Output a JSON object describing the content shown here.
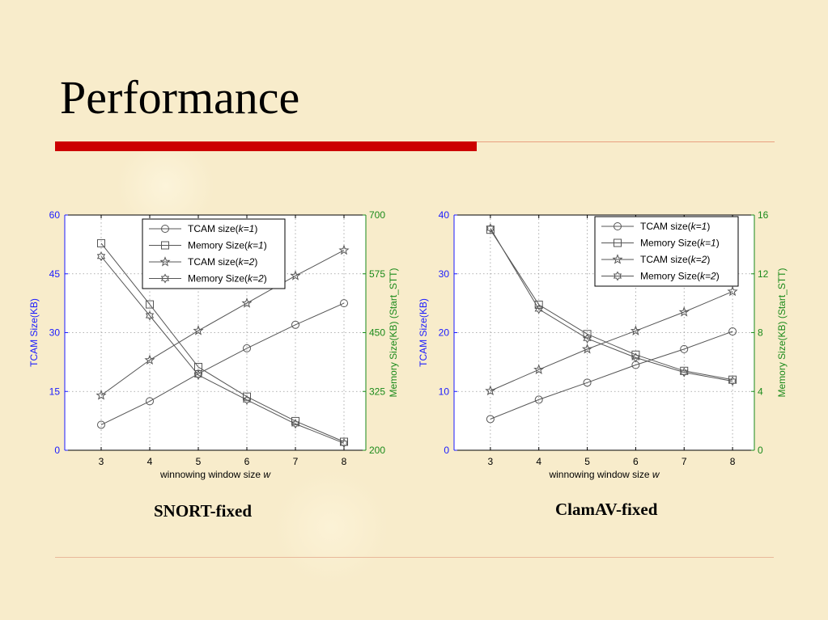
{
  "slide": {
    "title": "Performance",
    "caption_left": "SNORT-fixed",
    "caption_right": "ClamAV-fixed"
  },
  "colors": {
    "accent_red": "#cc0000",
    "left_axis": "#1a1aff",
    "right_axis": "#1a8a1a",
    "series": "#555555"
  },
  "chart_data": [
    {
      "type": "line",
      "x": [
        3,
        4,
        5,
        6,
        7,
        8
      ],
      "xlabel_text": "winnowing window size ",
      "xlabel_var": "w",
      "ylabel_left": "TCAM Size(KB)",
      "ylabel_right": "Memory Size(KB) (Start_STT)",
      "ylim_left": [
        0,
        60
      ],
      "ylim_right": [
        200,
        700
      ],
      "yticks_left": [
        0,
        15,
        30,
        45,
        60
      ],
      "yticks_right": [
        200,
        325,
        450,
        575,
        700
      ],
      "xticks": [
        3,
        4,
        5,
        6,
        7,
        8
      ],
      "grid": true,
      "legend_placement": "top-center",
      "series": [
        {
          "name": "TCAM size(k=1)",
          "name_prefix": "TCAM size(",
          "name_k": "k=1",
          "name_suffix": ")",
          "axis": "left",
          "marker": "circle",
          "values": [
            6.5,
            12.5,
            19.5,
            26,
            32,
            37.5
          ]
        },
        {
          "name": "Memory Size(k=1)",
          "name_prefix": "Memory Size(",
          "name_k": "k=1",
          "name_suffix": ")",
          "axis": "right",
          "marker": "square",
          "values": [
            640,
            510,
            377,
            314,
            262,
            218
          ]
        },
        {
          "name": "TCAM size(k=2)",
          "name_prefix": "TCAM size(",
          "name_k": "k=2",
          "name_suffix": ")",
          "axis": "left",
          "marker": "star",
          "values": [
            14,
            23,
            30.5,
            37.5,
            44.5,
            51
          ]
        },
        {
          "name": "Memory Size(k=2)",
          "name_prefix": "Memory Size(",
          "name_k": "k=2",
          "name_suffix": ")",
          "axis": "right",
          "marker": "hexagram",
          "values": [
            612,
            486,
            360,
            307,
            256,
            215
          ]
        }
      ]
    },
    {
      "type": "line",
      "x": [
        3,
        4,
        5,
        6,
        7,
        8
      ],
      "xlabel_text": "winnowing window size ",
      "xlabel_var": "w",
      "ylabel_left": "TCAM Size(KB)",
      "ylabel_right": "Memory Size(KB) (Start_STT)",
      "ylim_left": [
        0,
        40
      ],
      "ylim_right": [
        0,
        16
      ],
      "yticks_left": [
        0,
        10,
        20,
        30,
        40
      ],
      "yticks_right": [
        0,
        4,
        8,
        12,
        16
      ],
      "xticks": [
        3,
        4,
        5,
        6,
        7,
        8
      ],
      "grid": true,
      "legend_placement": "top-right",
      "series": [
        {
          "name": "TCAM size(k=1)",
          "name_prefix": "TCAM size(",
          "name_k": "k=1",
          "name_suffix": ")",
          "axis": "left",
          "marker": "circle",
          "values": [
            5.3,
            8.6,
            11.5,
            14.5,
            17.2,
            20.2
          ]
        },
        {
          "name": "Memory Size(k=1)",
          "name_prefix": "Memory Size(",
          "name_k": "k=1",
          "name_suffix": ")",
          "axis": "right",
          "marker": "square",
          "values": [
            15.0,
            9.9,
            7.9,
            6.5,
            5.4,
            4.8
          ]
        },
        {
          "name": "TCAM size(k=2)",
          "name_prefix": "TCAM size(",
          "name_k": "k=2",
          "name_suffix": ")",
          "axis": "left",
          "marker": "star",
          "values": [
            10.1,
            13.7,
            17.2,
            20.3,
            23.5,
            27.0
          ]
        },
        {
          "name": "Memory Size(k=2)",
          "name_prefix": "Memory Size(",
          "name_k": "k=2",
          "name_suffix": ")",
          "axis": "right",
          "marker": "hexagram",
          "values": [
            15.1,
            9.6,
            7.6,
            6.3,
            5.3,
            4.7
          ]
        }
      ]
    }
  ]
}
